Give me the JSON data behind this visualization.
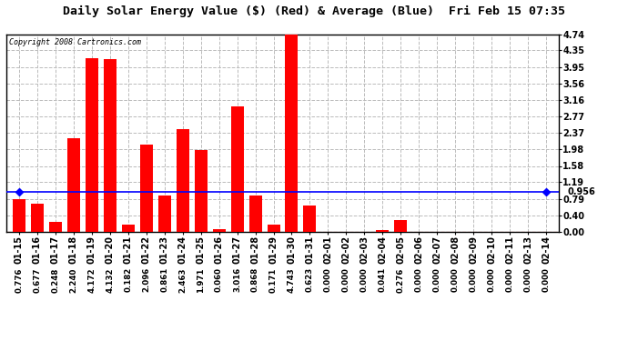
{
  "title": "Daily Solar Energy Value ($) (Red) & Average (Blue)  Fri Feb 15 07:35",
  "copyright": "Copyright 2008 Cartronics.com",
  "categories": [
    "01-15",
    "01-16",
    "01-17",
    "01-18",
    "01-19",
    "01-20",
    "01-21",
    "01-22",
    "01-23",
    "01-24",
    "01-25",
    "01-26",
    "01-27",
    "01-28",
    "01-29",
    "01-30",
    "01-31",
    "02-01",
    "02-02",
    "02-03",
    "02-04",
    "02-05",
    "02-06",
    "02-07",
    "02-08",
    "02-09",
    "02-10",
    "02-11",
    "02-13",
    "02-14"
  ],
  "values": [
    0.776,
    0.677,
    0.248,
    2.24,
    4.172,
    4.132,
    0.182,
    2.096,
    0.861,
    2.463,
    1.971,
    0.06,
    3.016,
    0.868,
    0.171,
    4.743,
    0.623,
    0.0,
    0.0,
    0.0,
    0.041,
    0.276,
    0.0,
    0.0,
    0.0,
    0.0,
    0.0,
    0.0,
    0.0,
    0.0
  ],
  "average": 0.956,
  "yticks": [
    0.0,
    0.4,
    0.79,
    1.19,
    1.58,
    1.98,
    2.37,
    2.77,
    3.16,
    3.56,
    3.95,
    4.35,
    4.74
  ],
  "bar_color": "#ff0000",
  "avg_line_color": "#0000ff",
  "background_color": "#ffffff",
  "grid_color": "#bbbbbb",
  "title_fontsize": 9.5,
  "tick_fontsize": 7,
  "label_fontsize": 6.2,
  "ylim": [
    0.0,
    4.74
  ],
  "avg_label": "0.956",
  "avg_label_fontsize": 7
}
